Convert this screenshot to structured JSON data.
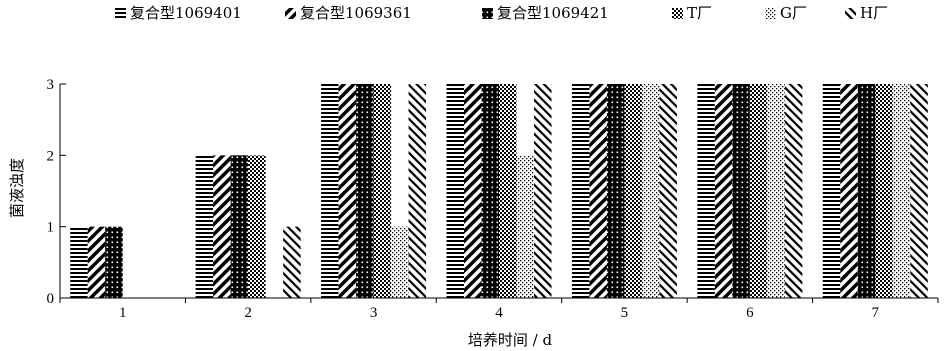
{
  "chart_data": {
    "type": "bar",
    "categories": [
      "1",
      "2",
      "3",
      "4",
      "5",
      "6",
      "7"
    ],
    "series": [
      {
        "name": "复合型1069401",
        "pattern": "hlines",
        "values": [
          1,
          2,
          3,
          3,
          3,
          3,
          3
        ]
      },
      {
        "name": "复合型1069361",
        "pattern": "diag",
        "values": [
          1,
          2,
          3,
          3,
          3,
          3,
          3
        ]
      },
      {
        "name": "复合型1069421",
        "pattern": "dots",
        "values": [
          1,
          2,
          3,
          3,
          3,
          3,
          3
        ]
      },
      {
        "name": "T厂",
        "pattern": "grid",
        "values": [
          0,
          2,
          3,
          3,
          3,
          3,
          3
        ]
      },
      {
        "name": "G厂",
        "pattern": "stipple",
        "values": [
          0,
          0,
          1,
          2,
          3,
          3,
          3
        ]
      },
      {
        "name": "H厂",
        "pattern": "bdiag",
        "values": [
          0,
          1,
          3,
          3,
          3,
          3,
          3
        ]
      }
    ],
    "xlabel": "培养时间 / d",
    "ylabel": "菌液浊度",
    "ylim": [
      0,
      3
    ],
    "yticks": [
      "0",
      "1",
      "2",
      "3"
    ],
    "legend_position": "top",
    "grid": false,
    "bar_color": "#000000"
  }
}
